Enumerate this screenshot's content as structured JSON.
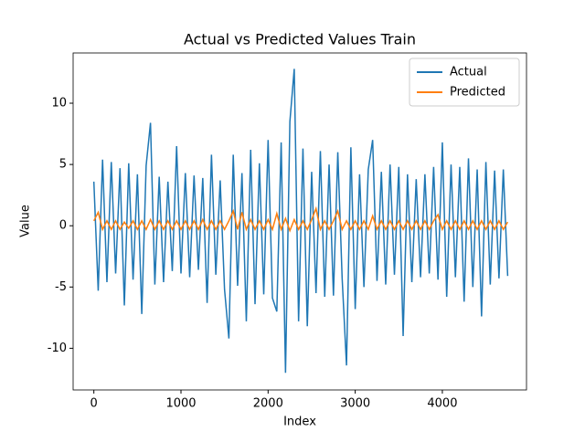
{
  "chart_data": {
    "type": "line",
    "title": "Actual vs Predicted Values Train",
    "x_label": "Index",
    "y_label": "Value",
    "x": [
      0,
      50,
      100,
      150,
      200,
      250,
      300,
      350,
      400,
      450,
      500,
      550,
      600,
      650,
      700,
      750,
      800,
      850,
      900,
      950,
      1000,
      1050,
      1100,
      1150,
      1200,
      1250,
      1300,
      1350,
      1400,
      1450,
      1500,
      1550,
      1600,
      1650,
      1700,
      1750,
      1800,
      1850,
      1900,
      1950,
      2000,
      2050,
      2100,
      2150,
      2200,
      2250,
      2300,
      2350,
      2400,
      2450,
      2500,
      2550,
      2600,
      2650,
      2700,
      2750,
      2800,
      2850,
      2900,
      2950,
      3000,
      3050,
      3100,
      3150,
      3200,
      3250,
      3300,
      3350,
      3400,
      3450,
      3500,
      3550,
      3600,
      3650,
      3700,
      3750,
      3800,
      3850,
      3900,
      3950,
      4000,
      4050,
      4100,
      4150,
      4200,
      4250,
      4300,
      4350,
      4400,
      4450,
      4500,
      4550,
      4600,
      4650,
      4700,
      4750
    ],
    "series": [
      {
        "name": "Actual",
        "color": "#1f77b4",
        "values": [
          3.6,
          -5.3,
          5.4,
          -4.6,
          5.2,
          -3.9,
          4.7,
          -6.5,
          5.1,
          -4.4,
          4.2,
          -7.2,
          4.9,
          8.4,
          -4.8,
          4.0,
          -4.6,
          3.6,
          -3.7,
          6.5,
          -3.9,
          4.3,
          -4.2,
          4.1,
          -3.6,
          3.9,
          -6.3,
          5.8,
          -4.0,
          3.7,
          -5.2,
          -9.2,
          5.8,
          -4.9,
          4.3,
          -7.8,
          6.2,
          -6.4,
          5.1,
          -5.6,
          7.0,
          -5.9,
          -7.0,
          6.8,
          -12.0,
          8.5,
          12.8,
          -7.8,
          6.3,
          -8.2,
          4.4,
          -5.5,
          6.1,
          -5.8,
          5.0,
          -5.7,
          6.0,
          -4.3,
          -11.4,
          6.4,
          -6.8,
          4.2,
          -5.0,
          4.6,
          7.0,
          -4.5,
          4.4,
          -4.8,
          5.0,
          -4.0,
          4.8,
          -9.0,
          4.2,
          -4.6,
          3.8,
          -4.2,
          4.2,
          -3.9,
          4.8,
          -4.4,
          6.8,
          -5.8,
          5.0,
          -4.2,
          4.8,
          -6.2,
          5.5,
          -5.0,
          4.6,
          -7.4,
          5.2,
          -4.8,
          4.5,
          -4.3,
          4.6,
          -4.1
        ]
      },
      {
        "name": "Predicted",
        "color": "#ff7f0e",
        "values": [
          0.4,
          1.1,
          -0.3,
          0.4,
          -0.3,
          0.4,
          -0.3,
          0.3,
          -0.2,
          0.4,
          -0.3,
          0.4,
          -0.3,
          0.5,
          -0.3,
          0.4,
          -0.3,
          0.4,
          -0.3,
          0.4,
          -0.3,
          0.4,
          -0.3,
          0.4,
          -0.3,
          0.5,
          -0.3,
          0.4,
          -0.3,
          0.4,
          -0.3,
          0.4,
          1.2,
          -0.3,
          1.1,
          -0.3,
          0.5,
          -0.3,
          0.4,
          -0.3,
          0.5,
          -0.3,
          1.0,
          -0.3,
          0.6,
          -0.4,
          0.5,
          -0.3,
          0.4,
          -0.3,
          0.5,
          1.4,
          -0.3,
          0.4,
          -0.3,
          0.4,
          1.2,
          -0.3,
          0.4,
          -0.3,
          0.4,
          -0.3,
          0.4,
          -0.3,
          0.8,
          -0.3,
          0.4,
          -0.3,
          0.4,
          -0.3,
          0.4,
          -0.3,
          0.4,
          -0.3,
          0.4,
          -0.3,
          0.4,
          -0.3,
          0.4,
          0.9,
          -0.3,
          0.4,
          -0.3,
          0.4,
          -0.3,
          0.4,
          -0.3,
          0.4,
          -0.3,
          0.4,
          -0.3,
          0.4,
          -0.3,
          0.4,
          -0.3,
          0.3
        ]
      }
    ],
    "xlim": [
      -238,
      4966
    ],
    "ylim": [
      -13.4,
      14.1
    ],
    "xticks": [
      0,
      1000,
      2000,
      3000,
      4000
    ],
    "yticks": [
      -10,
      -5,
      0,
      5,
      10
    ],
    "legend": "upper right"
  }
}
